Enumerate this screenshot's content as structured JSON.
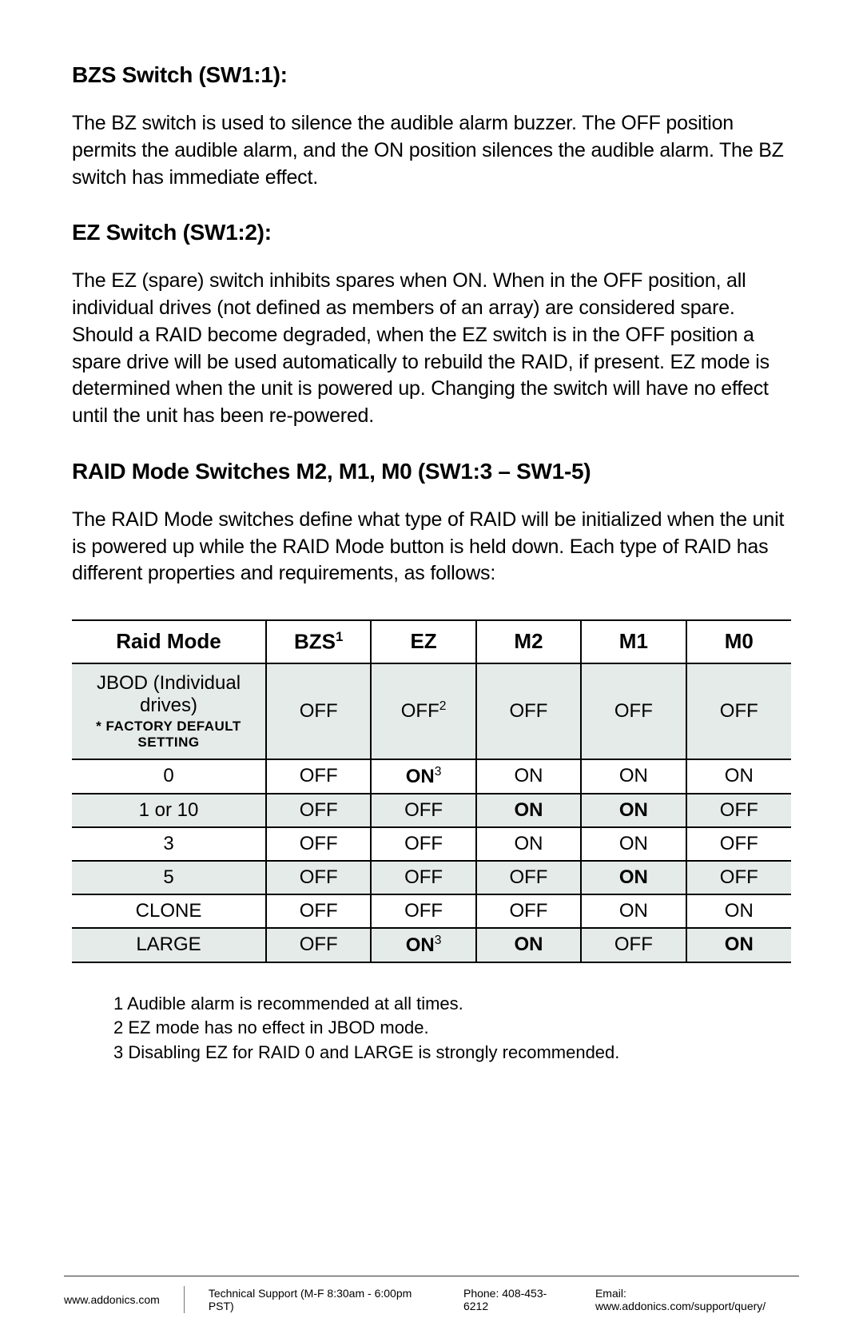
{
  "sections": {
    "bzs": {
      "heading": "BZS Switch (SW1:1):",
      "body": "The BZ switch is used to silence the audible alarm buzzer. The OFF position permits the audible alarm, and the ON position silences the audible alarm. The BZ switch has immediate effect."
    },
    "ez": {
      "heading": "EZ Switch (SW1:2):",
      "body": "The EZ (spare) switch inhibits spares when ON. When in the OFF position, all individual drives (not defined as members of an array) are considered spare. Should a RAID become degraded, when the EZ switch is in the OFF position a spare drive will be used automatically to rebuild the RAID, if present. EZ mode is determined when the unit is powered up. Changing the switch will have no effect until the unit has been re-powered."
    },
    "raid": {
      "heading": "RAID Mode Switches M2, M1, M0 (SW1:3 – SW1-5)",
      "body": "The RAID Mode switches define what type of RAID will be initialized when the unit is powered up while the RAID Mode button is held down. Each type of RAID has different properties and requirements, as follows:"
    }
  },
  "table": {
    "columns": [
      "Raid Mode",
      "BZS",
      "EZ",
      "M2",
      "M1",
      "M0"
    ],
    "bzs_sup": "1",
    "col_widths_pct": [
      27,
      14.6,
      14.6,
      14.6,
      14.6,
      14.6
    ],
    "header_bg": "#ffffff",
    "shaded_bg": "#e5ebe8",
    "border_color": "#000000",
    "font_size": 24,
    "header_font_size": 26,
    "rows": [
      {
        "mode": "JBOD (Individual drives)",
        "mode_sub": "* FACTORY DEFAULT SETTING",
        "bzs": "OFF",
        "ez": "OFF",
        "ez_sup": "2",
        "m2": "OFF",
        "m1": "OFF",
        "m0": "OFF",
        "shaded": true,
        "bold_cells": []
      },
      {
        "mode": "0",
        "bzs": "OFF",
        "ez": "ON",
        "ez_sup": "3",
        "m2": "ON",
        "m1": "ON",
        "m0": "ON",
        "shaded": false,
        "bold_cells": [
          "ez"
        ]
      },
      {
        "mode": "1 or 10",
        "bzs": "OFF",
        "ez": "OFF",
        "m2": "ON",
        "m1": "ON",
        "m0": "OFF",
        "shaded": true,
        "bold_cells": [
          "m2",
          "m1"
        ]
      },
      {
        "mode": "3",
        "bzs": "OFF",
        "ez": "OFF",
        "m2": "ON",
        "m1": "ON",
        "m0": "OFF",
        "shaded": false,
        "bold_cells": []
      },
      {
        "mode": "5",
        "bzs": "OFF",
        "ez": "OFF",
        "m2": "OFF",
        "m1": "ON",
        "m0": "OFF",
        "shaded": true,
        "bold_cells": [
          "m1"
        ]
      },
      {
        "mode": "CLONE",
        "bzs": "OFF",
        "ez": "OFF",
        "m2": "OFF",
        "m1": "ON",
        "m0": "ON",
        "shaded": false,
        "bold_cells": []
      },
      {
        "mode": "LARGE",
        "bzs": "OFF",
        "ez": "ON",
        "ez_sup": "3",
        "m2": "ON",
        "m1": "OFF",
        "m0": "ON",
        "shaded": true,
        "bold_cells": [
          "ez",
          "m2",
          "m0"
        ]
      }
    ]
  },
  "footnotes": {
    "n1": "1 Audible alarm is recommended at all times.",
    "n2": "2 EZ mode has no effect in JBOD mode.",
    "n3": "3 Disabling EZ for RAID 0 and LARGE is strongly recommended."
  },
  "footer": {
    "website": "www.addonics.com",
    "support": "Technical Support (M-F 8:30am - 6:00pm PST)",
    "phone": "Phone: 408-453-6212",
    "email": "Email: www.addonics.com/support/query/"
  }
}
